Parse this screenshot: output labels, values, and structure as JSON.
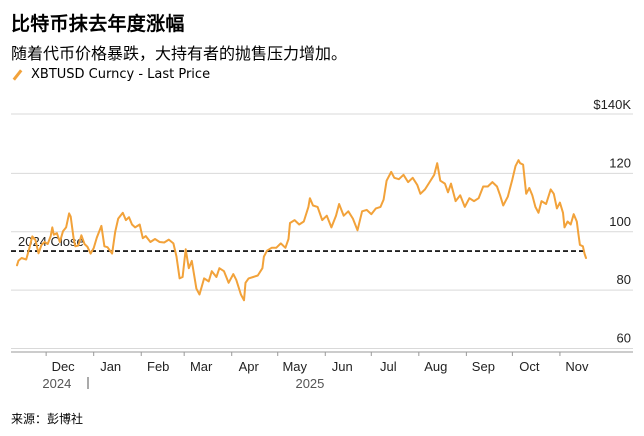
{
  "header": {
    "title": "比特币抹去年度涨幅",
    "subtitle": "随着代币价格暴跌，大持有者的抛售压力增加。"
  },
  "footer": {
    "source": "来源：彭博社"
  },
  "colors": {
    "series": "#f2a23a",
    "grid": "#d9d9d9",
    "reference": "#000000"
  },
  "chart_data": {
    "type": "line",
    "title": "比特币抹去年度涨幅",
    "ylim": [
      55,
      140
    ],
    "y_ticks": [
      {
        "value": 140,
        "label": "$140K"
      },
      {
        "value": 120,
        "label": "120"
      },
      {
        "value": 100,
        "label": "100"
      },
      {
        "value": 80,
        "label": "80"
      },
      {
        "value": 60,
        "label": "60"
      }
    ],
    "x_ticks": [
      {
        "date": "2024-12-01",
        "label": "Dec"
      },
      {
        "date": "2025-01-01",
        "label": "Jan"
      },
      {
        "date": "2025-02-01",
        "label": "Feb"
      },
      {
        "date": "2025-03-01",
        "label": "Mar"
      },
      {
        "date": "2025-04-01",
        "label": "Apr"
      },
      {
        "date": "2025-05-01",
        "label": "May"
      },
      {
        "date": "2025-06-01",
        "label": "Jun"
      },
      {
        "date": "2025-07-01",
        "label": "Jul"
      },
      {
        "date": "2025-08-01",
        "label": "Aug"
      },
      {
        "date": "2025-09-01",
        "label": "Sep"
      },
      {
        "date": "2025-10-01",
        "label": "Oct"
      },
      {
        "date": "2025-11-01",
        "label": "Nov"
      }
    ],
    "year_labels": [
      {
        "date": "2024-12-08",
        "label": "2024"
      },
      {
        "date": "2025-05-22",
        "label": "2025"
      }
    ],
    "reference_lines": [
      {
        "value": 93.4,
        "label": "2024 Close"
      }
    ],
    "series": [
      {
        "name": "XBTUSD Curncy - Last Price",
        "points": [
          [
            "2024-11-12",
            88.5
          ],
          [
            "2024-11-13",
            90.1
          ],
          [
            "2024-11-15",
            91.0
          ],
          [
            "2024-11-18",
            90.5
          ],
          [
            "2024-11-20",
            94.3
          ],
          [
            "2024-11-22",
            98.4
          ],
          [
            "2024-11-24",
            97.2
          ],
          [
            "2024-11-26",
            92.6
          ],
          [
            "2024-11-28",
            95.5
          ],
          [
            "2024-11-30",
            96.5
          ],
          [
            "2024-12-02",
            95.8
          ],
          [
            "2024-12-04",
            98.5
          ],
          [
            "2024-12-05",
            101.5
          ],
          [
            "2024-12-06",
            99.0
          ],
          [
            "2024-12-08",
            99.5
          ],
          [
            "2024-12-10",
            96.5
          ],
          [
            "2024-12-12",
            100.2
          ],
          [
            "2024-12-14",
            101.5
          ],
          [
            "2024-12-16",
            106.3
          ],
          [
            "2024-12-17",
            105.2
          ],
          [
            "2024-12-19",
            97.5
          ],
          [
            "2024-12-20",
            95.0
          ],
          [
            "2024-12-22",
            95.3
          ],
          [
            "2024-12-24",
            98.8
          ],
          [
            "2024-12-26",
            95.8
          ],
          [
            "2024-12-28",
            94.8
          ],
          [
            "2024-12-30",
            92.5
          ],
          [
            "2025-01-01",
            94.4
          ],
          [
            "2025-01-03",
            98.0
          ],
          [
            "2025-01-06",
            102.0
          ],
          [
            "2025-01-08",
            95.0
          ],
          [
            "2025-01-10",
            94.7
          ],
          [
            "2025-01-13",
            92.5
          ],
          [
            "2025-01-15",
            100.0
          ],
          [
            "2025-01-17",
            104.5
          ],
          [
            "2025-01-20",
            106.5
          ],
          [
            "2025-01-22",
            104.0
          ],
          [
            "2025-01-24",
            105.0
          ],
          [
            "2025-01-26",
            102.5
          ],
          [
            "2025-01-28",
            101.5
          ],
          [
            "2025-01-31",
            102.5
          ],
          [
            "2025-02-02",
            97.8
          ],
          [
            "2025-02-04",
            98.5
          ],
          [
            "2025-02-07",
            96.5
          ],
          [
            "2025-02-10",
            97.5
          ],
          [
            "2025-02-13",
            96.5
          ],
          [
            "2025-02-16",
            96.3
          ],
          [
            "2025-02-19",
            97.3
          ],
          [
            "2025-02-22",
            96.0
          ],
          [
            "2025-02-24",
            91.5
          ],
          [
            "2025-02-26",
            84.0
          ],
          [
            "2025-02-28",
            84.5
          ],
          [
            "2025-03-02",
            94.0
          ],
          [
            "2025-03-04",
            87.5
          ],
          [
            "2025-03-06",
            90.0
          ],
          [
            "2025-03-09",
            80.5
          ],
          [
            "2025-03-11",
            78.5
          ],
          [
            "2025-03-14",
            84.0
          ],
          [
            "2025-03-17",
            83.0
          ],
          [
            "2025-03-19",
            86.5
          ],
          [
            "2025-03-22",
            84.5
          ],
          [
            "2025-03-24",
            87.5
          ],
          [
            "2025-03-27",
            86.5
          ],
          [
            "2025-03-30",
            82.5
          ],
          [
            "2025-04-02",
            85.5
          ],
          [
            "2025-04-04",
            83.5
          ],
          [
            "2025-04-07",
            78.5
          ],
          [
            "2025-04-09",
            76.5
          ],
          [
            "2025-04-10",
            82.5
          ],
          [
            "2025-04-12",
            84.0
          ],
          [
            "2025-04-15",
            84.5
          ],
          [
            "2025-04-18",
            85.0
          ],
          [
            "2025-04-21",
            87.5
          ],
          [
            "2025-04-22",
            91.5
          ],
          [
            "2025-04-24",
            93.5
          ],
          [
            "2025-04-27",
            94.5
          ],
          [
            "2025-04-30",
            94.5
          ],
          [
            "2025-05-03",
            96.0
          ],
          [
            "2025-05-06",
            94.5
          ],
          [
            "2025-05-08",
            97.5
          ],
          [
            "2025-05-09",
            103.0
          ],
          [
            "2025-05-12",
            104.0
          ],
          [
            "2025-05-15",
            102.5
          ],
          [
            "2025-05-18",
            103.5
          ],
          [
            "2025-05-21",
            108.5
          ],
          [
            "2025-05-22",
            111.5
          ],
          [
            "2025-05-24",
            109.0
          ],
          [
            "2025-05-27",
            108.5
          ],
          [
            "2025-05-30",
            104.0
          ],
          [
            "2025-06-02",
            105.5
          ],
          [
            "2025-06-05",
            101.5
          ],
          [
            "2025-06-08",
            105.5
          ],
          [
            "2025-06-10",
            109.5
          ],
          [
            "2025-06-13",
            105.5
          ],
          [
            "2025-06-16",
            107.0
          ],
          [
            "2025-06-19",
            104.5
          ],
          [
            "2025-06-22",
            100.5
          ],
          [
            "2025-06-25",
            107.0
          ],
          [
            "2025-06-28",
            107.5
          ],
          [
            "2025-07-01",
            106.0
          ],
          [
            "2025-07-04",
            108.0
          ],
          [
            "2025-07-07",
            108.5
          ],
          [
            "2025-07-09",
            111.0
          ],
          [
            "2025-07-11",
            117.5
          ],
          [
            "2025-07-14",
            120.5
          ],
          [
            "2025-07-16",
            118.5
          ],
          [
            "2025-07-19",
            118.0
          ],
          [
            "2025-07-22",
            119.5
          ],
          [
            "2025-07-25",
            117.0
          ],
          [
            "2025-07-28",
            118.5
          ],
          [
            "2025-07-31",
            116.0
          ],
          [
            "2025-08-02",
            113.0
          ],
          [
            "2025-08-05",
            114.5
          ],
          [
            "2025-08-08",
            117.0
          ],
          [
            "2025-08-11",
            119.5
          ],
          [
            "2025-08-13",
            123.5
          ],
          [
            "2025-08-15",
            117.5
          ],
          [
            "2025-08-18",
            116.5
          ],
          [
            "2025-08-20",
            113.5
          ],
          [
            "2025-08-22",
            116.5
          ],
          [
            "2025-08-25",
            110.5
          ],
          [
            "2025-08-28",
            112.5
          ],
          [
            "2025-08-31",
            108.5
          ],
          [
            "2025-09-03",
            111.5
          ],
          [
            "2025-09-06",
            110.5
          ],
          [
            "2025-09-09",
            111.5
          ],
          [
            "2025-09-12",
            115.5
          ],
          [
            "2025-09-15",
            115.5
          ],
          [
            "2025-09-18",
            117.0
          ],
          [
            "2025-09-21",
            115.5
          ],
          [
            "2025-09-23",
            112.5
          ],
          [
            "2025-09-25",
            109.0
          ],
          [
            "2025-09-28",
            112.0
          ],
          [
            "2025-10-01",
            118.0
          ],
          [
            "2025-10-03",
            122.5
          ],
          [
            "2025-10-05",
            124.5
          ],
          [
            "2025-10-06",
            123.5
          ],
          [
            "2025-10-08",
            123.0
          ],
          [
            "2025-10-10",
            113.0
          ],
          [
            "2025-10-12",
            115.0
          ],
          [
            "2025-10-14",
            112.5
          ],
          [
            "2025-10-16",
            108.5
          ],
          [
            "2025-10-18",
            106.5
          ],
          [
            "2025-10-20",
            110.5
          ],
          [
            "2025-10-23",
            109.5
          ],
          [
            "2025-10-26",
            114.5
          ],
          [
            "2025-10-28",
            113.0
          ],
          [
            "2025-10-30",
            108.0
          ],
          [
            "2025-11-01",
            110.0
          ],
          [
            "2025-11-03",
            106.5
          ],
          [
            "2025-11-04",
            101.5
          ],
          [
            "2025-11-06",
            103.5
          ],
          [
            "2025-11-08",
            102.5
          ],
          [
            "2025-11-10",
            106.0
          ],
          [
            "2025-11-12",
            103.5
          ],
          [
            "2025-11-13",
            99.5
          ],
          [
            "2025-11-14",
            95.5
          ],
          [
            "2025-11-16",
            95.0
          ],
          [
            "2025-11-17",
            92.5
          ],
          [
            "2025-11-18",
            91.0
          ]
        ]
      }
    ]
  }
}
